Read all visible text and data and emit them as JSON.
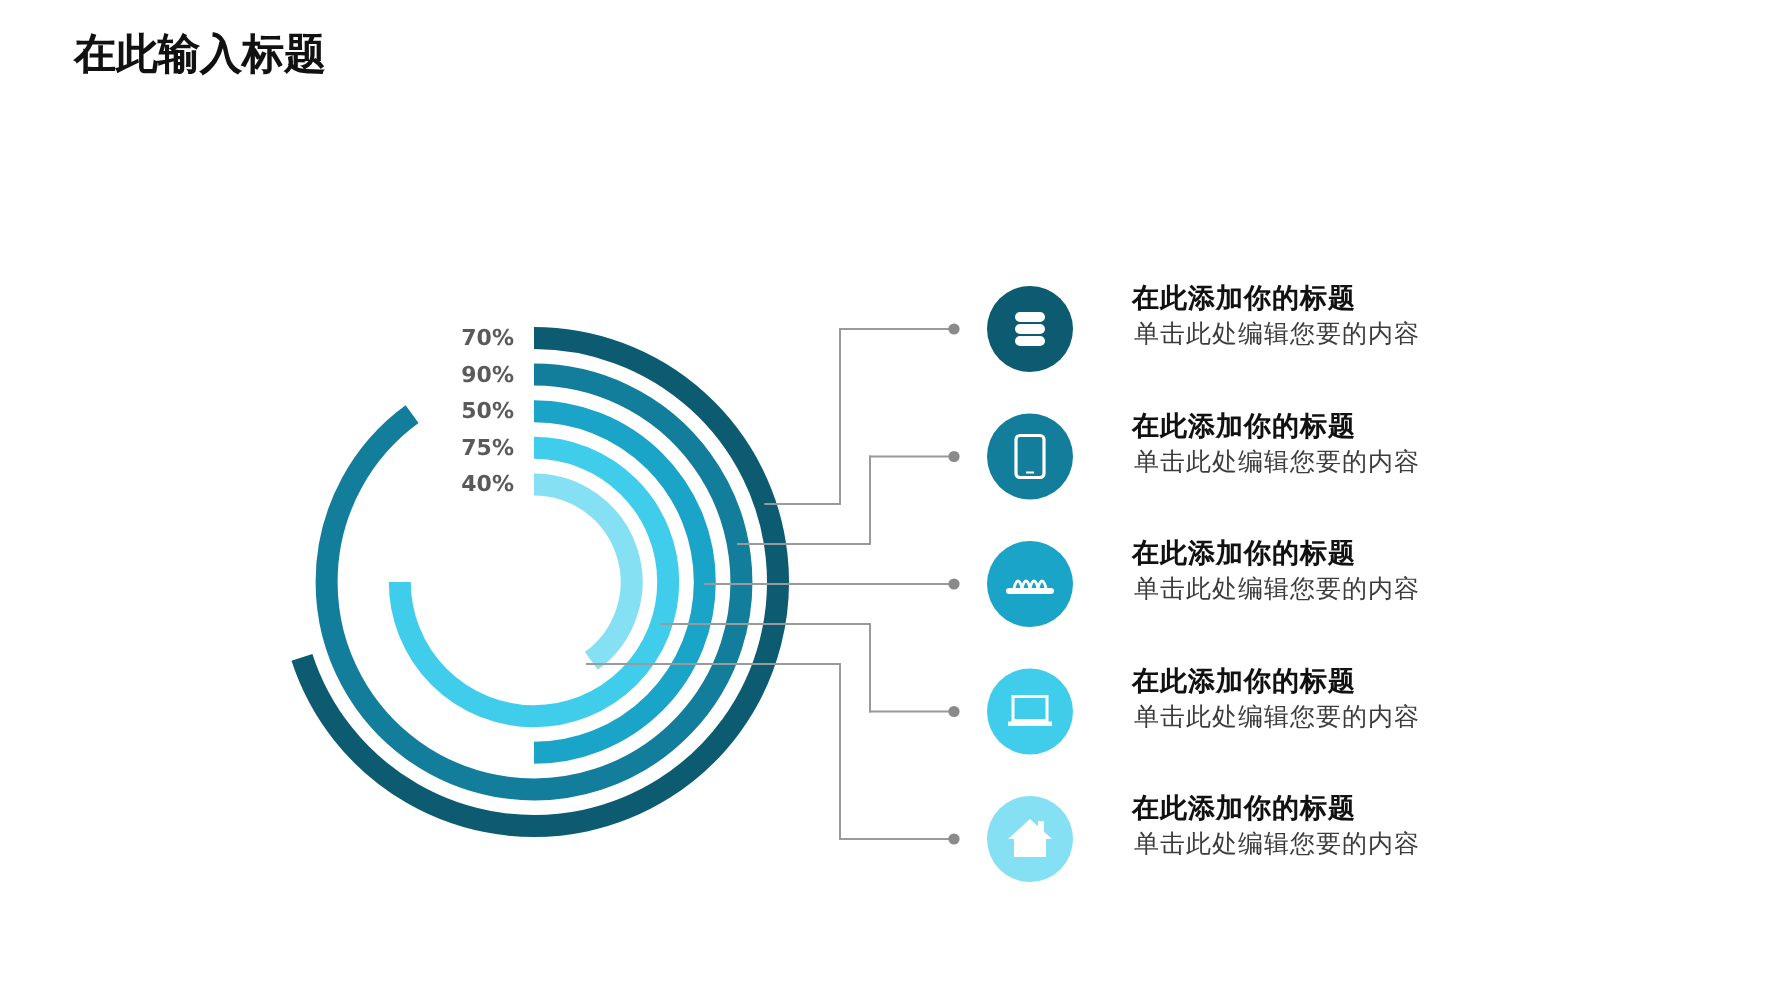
{
  "chart_data": {
    "type": "other",
    "title": "在此输入标题",
    "values": [
      70,
      90,
      50,
      75,
      40
    ],
    "value_labels": [
      "70%",
      "90%",
      "50%",
      "75%",
      "40%"
    ],
    "colors": [
      "#0d5b70",
      "#137e9b",
      "#19a4c8",
      "#40cdec",
      "#86e0f4"
    ],
    "annotations": [
      "在此添加你的标题",
      "单击此处编辑您要的内容",
      "在此添加你的标题",
      "单击此处编辑您要的内容",
      "在此添加你的标题",
      "单击此处编辑您要的内容",
      "在此添加你的标题",
      "单击此处编辑您要的内容",
      "在此添加你的标题",
      "单击此处编辑您要的内容"
    ]
  }
}
